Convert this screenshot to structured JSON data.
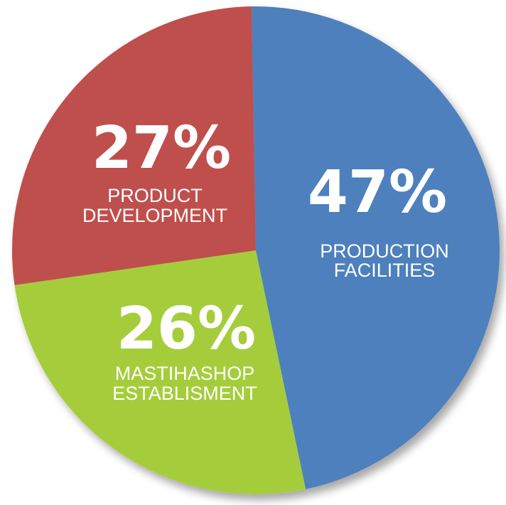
{
  "chart_data": {
    "type": "pie",
    "slices": [
      {
        "percent_label": "47%",
        "value": 47,
        "label_lines": [
          "PRODUCTION",
          "FACILITIES"
        ],
        "color": "#4d80bd"
      },
      {
        "percent_label": "26%",
        "value": 26,
        "label_lines": [
          "MASTIHASHOP",
          "ESTABLISMENT"
        ],
        "color": "#a5cd3a"
      },
      {
        "percent_label": "27%",
        "value": 27,
        "label_lines": [
          "PRODUCT",
          "DEVELOPMENT"
        ],
        "color": "#bf504e"
      }
    ]
  }
}
